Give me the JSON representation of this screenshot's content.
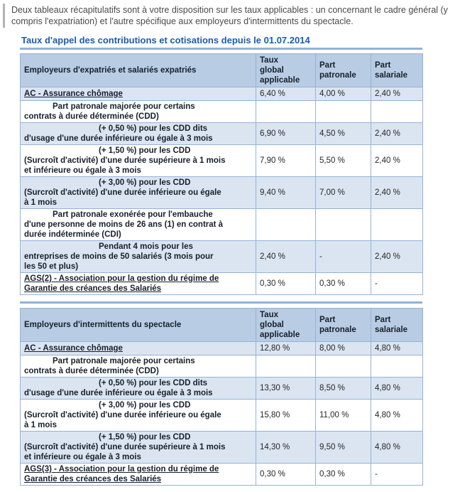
{
  "intro_text": "Deux tableaux récapitulatifs sont à votre disposition sur les taux applicables : un concernant le cadre général (y compris l'expatriation) et l'autre spécifique aux employeurs d'intermittents du spectacle.",
  "section_title": "Taux d'appel des contributions et cotisations depuis le 01.07.2014",
  "colors": {
    "title_blue": "#1b5cab",
    "header_bg": "#b8cce4",
    "stripe_bg": "#dbe5f1",
    "table_border": "#95b3d7",
    "rule_blue": "#94b2d5",
    "intro_text": "#4a4a4a",
    "intro_bar": "#b3b3b3"
  },
  "tables": {
    "expatries": {
      "headers": [
        "Employeurs d'expatriés et salariés expatriés",
        "Taux\nglobal\napplicable",
        "Part\npatronale",
        "Part\nsalariale"
      ],
      "rows": [
        {
          "label": "AC - Assurance chômage",
          "values": [
            "6,40 %",
            "4,00 %",
            "2,40 %"
          ]
        },
        {
          "label": "Part patronale majorée pour certains\ncontrats à durée déterminée (CDD)",
          "values": [
            "",
            "",
            ""
          ]
        },
        {
          "label": "(+ 0,50 %) pour les CDD dits\nd'usage d'une durée inférieure ou égale à 3 mois",
          "values": [
            "6,90 %",
            "4,50 %",
            "2,40 %"
          ]
        },
        {
          "label": "(+ 1,50 %) pour les CDD\n(Surcroît d'activité) d'une durée supérieure à 1 mois\net inférieure ou égale à 3 mois",
          "values": [
            "7,90 %",
            "5,50 %",
            "2,40 %"
          ]
        },
        {
          "label": "(+ 3,00 %) pour les CDD\n(Surcroît d'activité) d'une durée inférieure ou égale\nà 1 mois",
          "values": [
            "9,40 %",
            "7,00 %",
            "2,40 %"
          ]
        },
        {
          "label": "Part patronale exonérée pour l'embauche\nd'une personne de moins de 26 ans (1) en contrat à\ndurée indéterminée (CDI)",
          "values": [
            "",
            "",
            ""
          ]
        },
        {
          "label": "Pendant 4 mois pour les\nentreprises de moins de 50 salariés (3 mois pour\nles 50 et plus)",
          "values": [
            "2,40 %",
            "-",
            "2,40 %"
          ]
        },
        {
          "label": "AGS(2) - Association pour la gestion du régime de\nGarantie des créances des Salariés",
          "values": [
            "0,30 %",
            "0,30 %",
            "-"
          ]
        }
      ]
    },
    "intermittents": {
      "headers": [
        "Employeurs d'intermittents du spectacle",
        "Taux\nglobal\napplicable",
        "Part\npatronale",
        "Part\nsalariale"
      ],
      "rows": [
        {
          "label": "AC - Assurance chômage",
          "values": [
            "12,80 %",
            "8,00 %",
            "4,80 %"
          ]
        },
        {
          "label": "Part patronale majorée pour certains\ncontrats à durée déterminée (CDD)",
          "values": [
            "",
            "",
            ""
          ]
        },
        {
          "label": "(+ 0,50 %) pour les CDD dits\nd'usage d'une durée inférieure ou égale à 3 mois",
          "values": [
            "13,30 %",
            "8,50 %",
            "4,80 %"
          ]
        },
        {
          "label": "(+ 3,00 %) pour les CDD\n(Surcroît d'activité) d'une durée inférieure ou égale\nà 1 mois",
          "values": [
            "15,80 %",
            "11,00 %",
            "4,80 %"
          ]
        },
        {
          "label": "(+ 1,50 %) pour les CDD\n(Surcroît d'activité) d'une durée supérieure à 1 mois\net inférieure ou égale à 3 mois",
          "values": [
            "14,30 %",
            "9,50 %",
            "4,80 %"
          ]
        },
        {
          "label": "AGS(3) - Association pour la gestion du régime de\nGarantie des créances des Salariés",
          "values": [
            "0,30 %",
            "0,30 %",
            "-"
          ]
        }
      ]
    }
  }
}
